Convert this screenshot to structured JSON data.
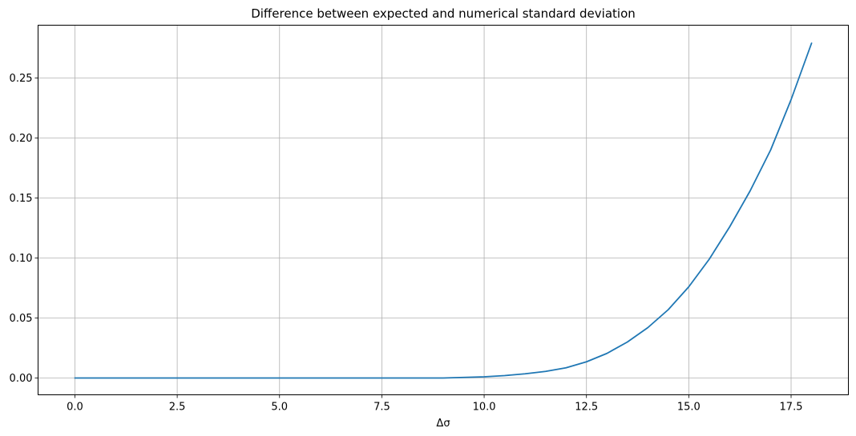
{
  "chart_data": {
    "type": "line",
    "title": "Difference between expected and numerical standard deviation",
    "xlabel": "Δσ",
    "ylabel": "",
    "xlim": [
      -0.9,
      18.9
    ],
    "ylim": [
      -0.014,
      0.294
    ],
    "grid": true,
    "x_ticks": [
      0.0,
      2.5,
      5.0,
      7.5,
      10.0,
      12.5,
      15.0,
      17.5
    ],
    "x_tick_labels": [
      "0.0",
      "2.5",
      "5.0",
      "7.5",
      "10.0",
      "12.5",
      "15.0",
      "17.5"
    ],
    "y_ticks": [
      0.0,
      0.05,
      0.1,
      0.15,
      0.2,
      0.25
    ],
    "y_tick_labels": [
      "0.00",
      "0.05",
      "0.10",
      "0.15",
      "0.20",
      "0.25"
    ],
    "series": [
      {
        "name": "difference",
        "color": "#1f77b4",
        "x": [
          0.0,
          1.0,
          2.0,
          3.0,
          4.0,
          5.0,
          6.0,
          7.0,
          8.0,
          9.0,
          9.5,
          10.0,
          10.5,
          11.0,
          11.5,
          12.0,
          12.5,
          13.0,
          13.5,
          14.0,
          14.5,
          15.0,
          15.5,
          16.0,
          16.5,
          17.0,
          17.5,
          18.0
        ],
        "y": [
          0.0,
          0.0,
          0.0,
          0.0,
          0.0,
          0.0,
          0.0,
          0.0,
          0.0,
          0.0,
          0.0005,
          0.001,
          0.002,
          0.0035,
          0.0055,
          0.0085,
          0.0135,
          0.0205,
          0.03,
          0.042,
          0.057,
          0.076,
          0.099,
          0.126,
          0.156,
          0.19,
          0.232,
          0.279
        ]
      }
    ]
  }
}
